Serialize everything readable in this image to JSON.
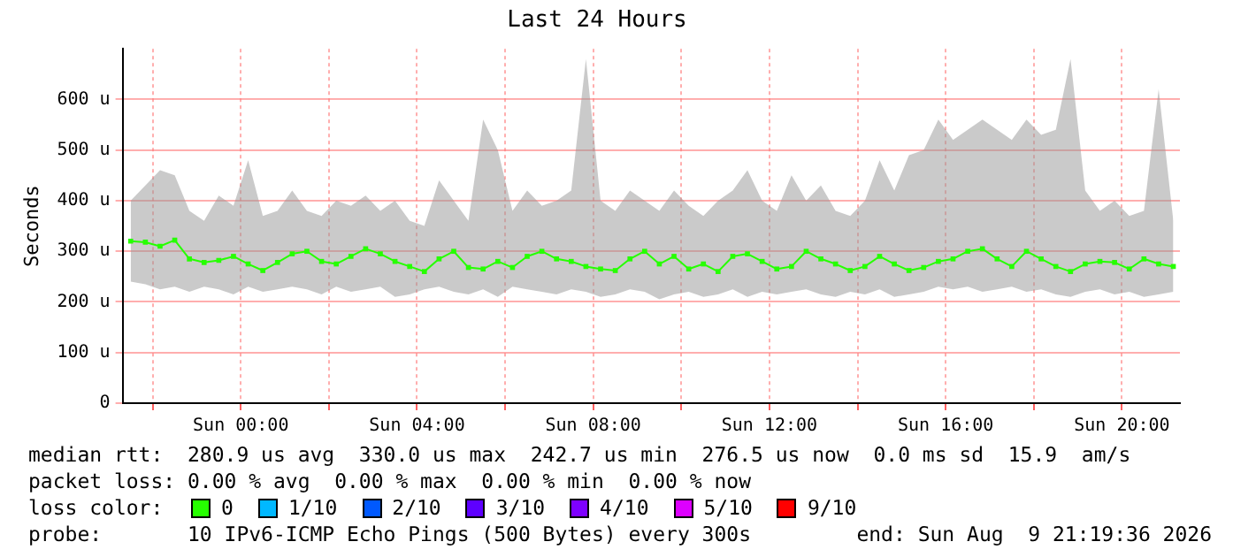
{
  "chart_data": {
    "type": "line",
    "title": "Last 24 Hours",
    "ylabel": "Seconds",
    "legend_title": "loss color:",
    "legend": "bottom",
    "grid": true,
    "marker": "square",
    "line_style": "solid",
    "x": [
      "2026-08-08T21:30",
      "2026-08-08T21:50",
      "2026-08-08T22:10",
      "2026-08-08T22:30",
      "2026-08-08T22:50",
      "2026-08-08T23:10",
      "2026-08-08T23:30",
      "2026-08-08T23:50",
      "2026-08-09T00:10",
      "2026-08-09T00:30",
      "2026-08-09T00:50",
      "2026-08-09T01:10",
      "2026-08-09T01:30",
      "2026-08-09T01:50",
      "2026-08-09T02:10",
      "2026-08-09T02:30",
      "2026-08-09T02:50",
      "2026-08-09T03:10",
      "2026-08-09T03:30",
      "2026-08-09T03:50",
      "2026-08-09T04:10",
      "2026-08-09T04:30",
      "2026-08-09T04:50",
      "2026-08-09T05:10",
      "2026-08-09T05:30",
      "2026-08-09T05:50",
      "2026-08-09T06:10",
      "2026-08-09T06:30",
      "2026-08-09T06:50",
      "2026-08-09T07:10",
      "2026-08-09T07:30",
      "2026-08-09T07:50",
      "2026-08-09T08:10",
      "2026-08-09T08:30",
      "2026-08-09T08:50",
      "2026-08-09T09:10",
      "2026-08-09T09:30",
      "2026-08-09T09:50",
      "2026-08-09T10:10",
      "2026-08-09T10:30",
      "2026-08-09T10:50",
      "2026-08-09T11:10",
      "2026-08-09T11:30",
      "2026-08-09T11:50",
      "2026-08-09T12:10",
      "2026-08-09T12:30",
      "2026-08-09T12:50",
      "2026-08-09T13:10",
      "2026-08-09T13:30",
      "2026-08-09T13:50",
      "2026-08-09T14:10",
      "2026-08-09T14:30",
      "2026-08-09T14:50",
      "2026-08-09T15:10",
      "2026-08-09T15:30",
      "2026-08-09T15:50",
      "2026-08-09T16:10",
      "2026-08-09T16:30",
      "2026-08-09T16:50",
      "2026-08-09T17:10",
      "2026-08-09T17:30",
      "2026-08-09T17:50",
      "2026-08-09T18:10",
      "2026-08-09T18:30",
      "2026-08-09T18:50",
      "2026-08-09T19:10",
      "2026-08-09T19:30",
      "2026-08-09T19:50",
      "2026-08-09T20:10",
      "2026-08-09T20:30",
      "2026-08-09T20:50",
      "2026-08-09T21:10"
    ],
    "xlim": [
      "2026-08-08T21:19",
      "2026-08-09T21:19"
    ],
    "xticks": [
      {
        "value": "2026-08-08T22:00",
        "label": null
      },
      {
        "value": "2026-08-09T00:00",
        "label": "Sun 00:00"
      },
      {
        "value": "2026-08-09T02:00",
        "label": null
      },
      {
        "value": "2026-08-09T04:00",
        "label": "Sun 04:00"
      },
      {
        "value": "2026-08-09T06:00",
        "label": null
      },
      {
        "value": "2026-08-09T08:00",
        "label": "Sun 08:00"
      },
      {
        "value": "2026-08-09T10:00",
        "label": null
      },
      {
        "value": "2026-08-09T12:00",
        "label": "Sun 12:00"
      },
      {
        "value": "2026-08-09T14:00",
        "label": null
      },
      {
        "value": "2026-08-09T16:00",
        "label": "Sun 16:00"
      },
      {
        "value": "2026-08-09T18:00",
        "label": null
      },
      {
        "value": "2026-08-09T20:00",
        "label": "Sun 20:00"
      }
    ],
    "ylim": [
      0,
      700
    ],
    "yticks": [
      0,
      {
        "value": 100,
        "label": "100 u"
      },
      {
        "value": 200,
        "label": "200 u"
      },
      {
        "value": 300,
        "label": "300 u"
      },
      {
        "value": 400,
        "label": "400 u"
      },
      {
        "value": 500,
        "label": "500 u"
      },
      {
        "value": 600,
        "label": "600 u"
      }
    ],
    "series": [
      {
        "name": "0",
        "color": "#26ff00",
        "values": [
          320,
          318,
          310,
          322,
          285,
          278,
          282,
          290,
          275,
          262,
          278,
          295,
          300,
          280,
          275,
          290,
          305,
          295,
          280,
          270,
          260,
          285,
          300,
          268,
          265,
          280,
          268,
          290,
          300,
          285,
          280,
          270,
          265,
          262,
          285,
          300,
          275,
          290,
          265,
          275,
          260,
          290,
          295,
          280,
          265,
          270,
          300,
          285,
          275,
          262,
          270,
          290,
          275,
          262,
          268,
          280,
          285,
          300,
          305,
          285,
          270,
          300,
          285,
          270,
          260,
          275,
          280,
          278,
          265,
          285,
          275,
          270
        ],
        "lower": [
          240,
          235,
          225,
          230,
          220,
          230,
          225,
          215,
          230,
          220,
          225,
          230,
          225,
          215,
          230,
          220,
          225,
          230,
          210,
          215,
          225,
          230,
          220,
          215,
          225,
          210,
          230,
          225,
          220,
          215,
          225,
          220,
          210,
          215,
          225,
          220,
          205,
          215,
          220,
          210,
          215,
          225,
          210,
          220,
          215,
          220,
          225,
          215,
          210,
          220,
          215,
          225,
          210,
          215,
          220,
          230,
          225,
          230,
          220,
          225,
          230,
          220,
          225,
          215,
          210,
          220,
          225,
          215,
          220,
          210,
          215,
          220
        ],
        "upper": [
          400,
          430,
          460,
          450,
          380,
          360,
          410,
          390,
          480,
          370,
          380,
          420,
          380,
          370,
          400,
          390,
          410,
          380,
          400,
          360,
          350,
          440,
          400,
          360,
          560,
          500,
          380,
          420,
          390,
          400,
          420,
          680,
          400,
          380,
          420,
          400,
          380,
          420,
          390,
          370,
          400,
          420,
          460,
          400,
          380,
          450,
          400,
          430,
          380,
          370,
          400,
          480,
          420,
          490,
          500,
          560,
          520,
          540,
          560,
          540,
          520,
          560,
          530,
          540,
          680,
          420,
          380,
          400,
          370,
          380,
          620,
          360
        ]
      },
      {
        "name": "1/10",
        "color": "#00b8ff",
        "values": [
          null,
          null,
          null,
          null,
          null,
          null,
          null,
          null,
          null,
          null,
          null,
          null,
          null,
          null,
          null,
          null,
          null,
          null,
          null,
          null,
          null,
          null,
          null,
          null,
          null,
          null,
          null,
          null,
          null,
          null,
          null,
          null,
          null,
          null,
          null,
          null,
          null,
          null,
          null,
          null,
          null,
          null,
          null,
          null,
          null,
          null,
          null,
          null,
          null,
          null,
          null,
          null,
          null,
          null,
          null,
          null,
          null,
          null,
          null,
          null,
          null,
          null,
          null,
          null,
          null,
          null,
          null,
          null,
          null,
          null,
          null,
          null
        ]
      },
      {
        "name": "2/10",
        "color": "#0059ff",
        "values": [
          null,
          null,
          null,
          null,
          null,
          null,
          null,
          null,
          null,
          null,
          null,
          null,
          null,
          null,
          null,
          null,
          null,
          null,
          null,
          null,
          null,
          null,
          null,
          null,
          null,
          null,
          null,
          null,
          null,
          null,
          null,
          null,
          null,
          null,
          null,
          null,
          null,
          null,
          null,
          null,
          null,
          null,
          null,
          null,
          null,
          null,
          null,
          null,
          null,
          null,
          null,
          null,
          null,
          null,
          null,
          null,
          null,
          null,
          null,
          null,
          null,
          null,
          null,
          null,
          null,
          null,
          null,
          null,
          null,
          null,
          null,
          null
        ]
      },
      {
        "name": "3/10",
        "color": "#5e00ff",
        "values": [
          null,
          null,
          null,
          null,
          null,
          null,
          null,
          null,
          null,
          null,
          null,
          null,
          null,
          null,
          null,
          null,
          null,
          null,
          null,
          null,
          null,
          null,
          null,
          null,
          null,
          null,
          null,
          null,
          null,
          null,
          null,
          null,
          null,
          null,
          null,
          null,
          null,
          null,
          null,
          null,
          null,
          null,
          null,
          null,
          null,
          null,
          null,
          null,
          null,
          null,
          null,
          null,
          null,
          null,
          null,
          null,
          null,
          null,
          null,
          null,
          null,
          null,
          null,
          null,
          null,
          null,
          null,
          null,
          null,
          null,
          null,
          null
        ]
      },
      {
        "name": "4/10",
        "color": "#7e00ff",
        "values": [
          null,
          null,
          null,
          null,
          null,
          null,
          null,
          null,
          null,
          null,
          null,
          null,
          null,
          null,
          null,
          null,
          null,
          null,
          null,
          null,
          null,
          null,
          null,
          null,
          null,
          null,
          null,
          null,
          null,
          null,
          null,
          null,
          null,
          null,
          null,
          null,
          null,
          null,
          null,
          null,
          null,
          null,
          null,
          null,
          null,
          null,
          null,
          null,
          null,
          null,
          null,
          null,
          null,
          null,
          null,
          null,
          null,
          null,
          null,
          null,
          null,
          null,
          null,
          null,
          null,
          null,
          null,
          null,
          null,
          null,
          null,
          null
        ]
      },
      {
        "name": "5/10",
        "color": "#dd00ff",
        "values": [
          null,
          null,
          null,
          null,
          null,
          null,
          null,
          null,
          null,
          null,
          null,
          null,
          null,
          null,
          null,
          null,
          null,
          null,
          null,
          null,
          null,
          null,
          null,
          null,
          null,
          null,
          null,
          null,
          null,
          null,
          null,
          null,
          null,
          null,
          null,
          null,
          null,
          null,
          null,
          null,
          null,
          null,
          null,
          null,
          null,
          null,
          null,
          null,
          null,
          null,
          null,
          null,
          null,
          null,
          null,
          null,
          null,
          null,
          null,
          null,
          null,
          null,
          null,
          null,
          null,
          null,
          null,
          null,
          null,
          null,
          null,
          null
        ]
      },
      {
        "name": "9/10",
        "color": "#ff0000",
        "values": [
          null,
          null,
          null,
          null,
          null,
          null,
          null,
          null,
          null,
          null,
          null,
          null,
          null,
          null,
          null,
          null,
          null,
          null,
          null,
          null,
          null,
          null,
          null,
          null,
          null,
          null,
          null,
          null,
          null,
          null,
          null,
          null,
          null,
          null,
          null,
          null,
          null,
          null,
          null,
          null,
          null,
          null,
          null,
          null,
          null,
          null,
          null,
          null,
          null,
          null,
          null,
          null,
          null,
          null,
          null,
          null,
          null,
          null,
          null,
          null,
          null,
          null,
          null,
          null,
          null,
          null,
          null,
          null,
          null,
          null,
          null,
          null
        ]
      }
    ],
    "annotations": [
      "median rtt:  280.9 us avg  330.0 us max  242.7 us min  276.5 us now  0.0 ms sd  15.9  am/s",
      "packet loss: 0.00 % avg  0.00 % max  0.00 % min  0.00 % now",
      "probe:       10 IPv6-ICMP Echo Pings (500 Bytes) every 300s",
      "end: Sun Aug  9 21:19:36 2026"
    ]
  }
}
